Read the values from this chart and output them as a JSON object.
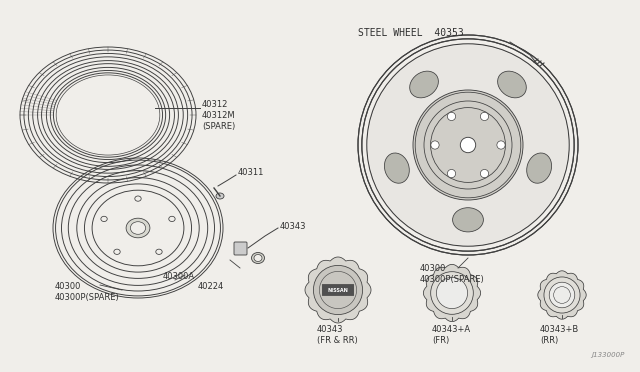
{
  "bg_color": "#f0eeea",
  "line_color": "#404040",
  "diagram_ref": "J133000P",
  "steel_wheel_label": "STEEL WHEEL  40353",
  "labels": {
    "tire": "40312\n40312M\n(SPARE)",
    "valve": "40311",
    "lug_nut": "40343",
    "wheel_bottom": "40300\n40300P(SPARE)",
    "hub": "40300A",
    "nut2": "40224",
    "steel_bottom": "40300\n40300P(SPARE)",
    "cap1": "40343\n(FR & RR)",
    "cap2": "40343+A\n(FR)",
    "cap3": "40343+B\n(RR)"
  }
}
